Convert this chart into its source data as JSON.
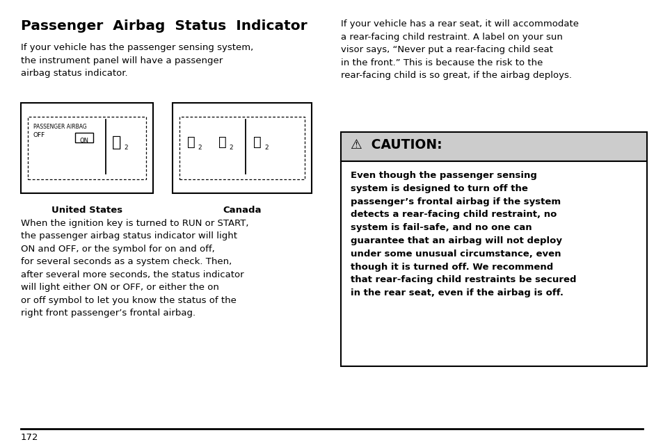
{
  "title": "Passenger  Airbag  Status  Indicator",
  "left_para1": "If your vehicle has the passenger sensing system,\nthe instrument panel will have a passenger\nairbag status indicator.",
  "us_label": "United States",
  "canada_label": "Canada",
  "left_para2": "When the ignition key is turned to RUN or START,\nthe passenger airbag status indicator will light\nON and OFF, or the symbol for on and off,\nfor several seconds as a system check. Then,\nafter several more seconds, the status indicator\nwill light either ON or OFF, or either the on\nor off symbol to let you know the status of the\nright front passenger’s frontal airbag.",
  "right_para1": "If your vehicle has a rear seat, it will accommodate\na rear-facing child restraint. A label on your sun\nvisor says, “Never put a rear-facing child seat\nin the front.” This is because the risk to the\nrear-facing child is so great, if the airbag deploys.",
  "caution_header": "⚠  CAUTION:",
  "caution_body": "Even though the passenger sensing\nsystem is designed to turn off the\npassenger’s frontal airbag if the system\ndetects a rear-facing child restraint, no\nsystem is fail-safe, and no one can\nguarantee that an airbag will not deploy\nunder some unusual circumstance, even\nthough it is turned off. We recommend\nthat rear-facing child restraints be secured\nin the rear seat, even if the airbag is off.",
  "page_number": "172",
  "bg_color": "#ffffff",
  "caution_bg": "#cccccc",
  "caution_box_bg": "#ffffff",
  "text_color": "#000000"
}
